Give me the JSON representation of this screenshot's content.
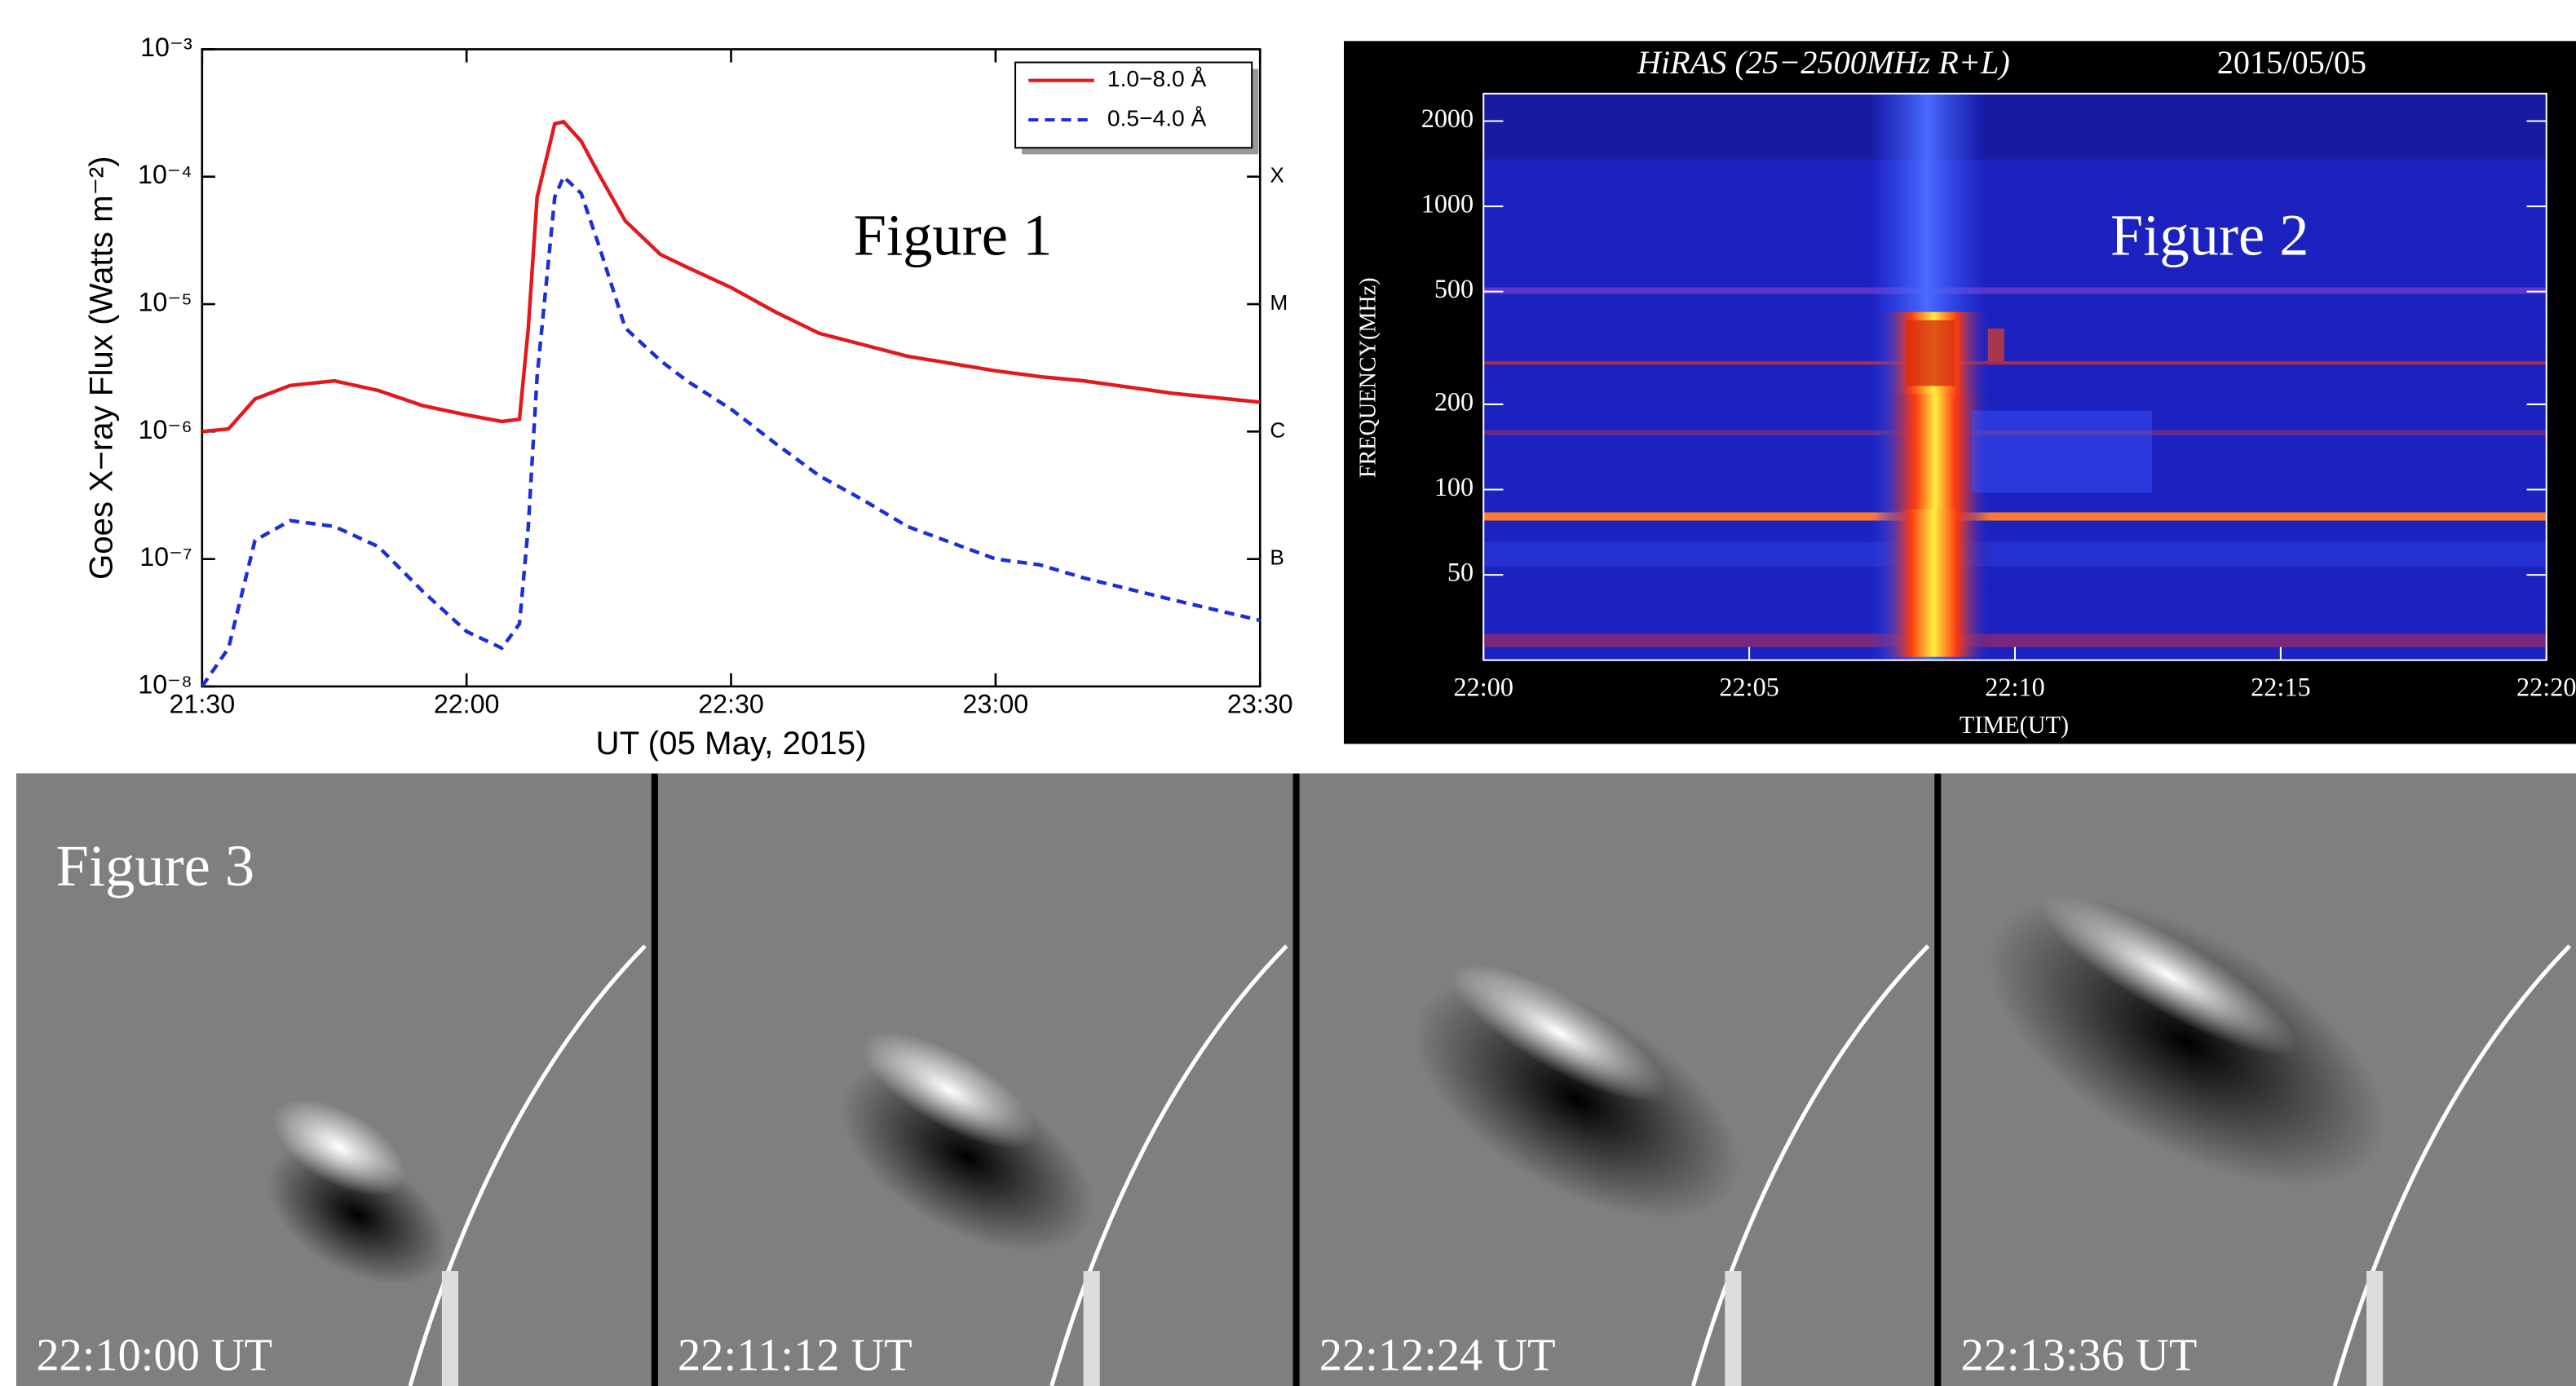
{
  "chart_data": [
    {
      "type": "line",
      "annotation": "Figure 1",
      "xlabel": "UT (05 May, 2015)",
      "ylabel": "Goes X−ray Flux (Watts m⁻²)",
      "log_y": true,
      "legend": "upper right",
      "x": [
        "21:30",
        "21:33",
        "21:36",
        "21:40",
        "21:45",
        "21:50",
        "21:55",
        "22:00",
        "22:04",
        "22:06",
        "22:07",
        "22:08",
        "22:10",
        "22:11",
        "22:13",
        "22:15",
        "22:18",
        "22:22",
        "22:25",
        "22:30",
        "22:35",
        "22:40",
        "22:45",
        "22:50",
        "23:00",
        "23:05",
        "23:10",
        "23:20",
        "23:30"
      ],
      "xlim": [
        "21:30",
        "23:30"
      ],
      "xticks": [
        "21:30",
        "22:00",
        "22:30",
        "23:00",
        "23:30"
      ],
      "ylim": [
        1e-08,
        0.001
      ],
      "yticks": [
        {
          "value": 1e-08,
          "label": "10⁻⁸"
        },
        {
          "value": 1e-07,
          "label": "10⁻⁷"
        },
        {
          "value": 1e-06,
          "label": "10⁻⁶"
        },
        {
          "value": 1e-05,
          "label": "10⁻⁵"
        },
        {
          "value": 0.0001,
          "label": "10⁻⁴"
        },
        {
          "value": 0.001,
          "label": "10⁻³"
        }
      ],
      "y2lim": [
        1e-08,
        0.001
      ],
      "y2ticks": [
        {
          "value": 1e-07,
          "label": "B"
        },
        {
          "value": 1e-06,
          "label": "C"
        },
        {
          "value": 1e-05,
          "label": "M"
        },
        {
          "value": 0.0001,
          "label": "X"
        }
      ],
      "series": [
        {
          "name": "1.0−8.0 Å",
          "color": "#e3171c",
          "style": "solid",
          "values": [
            1e-06,
            1.05e-06,
            1.8e-06,
            2.3e-06,
            2.5e-06,
            2.1e-06,
            1.6e-06,
            1.35e-06,
            1.2e-06,
            1.25e-06,
            6.5e-06,
            6.9e-05,
            0.00026,
            0.00027,
            0.00019,
            0.000105,
            4.5e-05,
            2.45e-05,
            1.95e-05,
            1.35e-05,
            8.7e-06,
            5.9e-06,
            4.8e-06,
            3.9e-06,
            3e-06,
            2.7e-06,
            2.5e-06,
            2e-06,
            1.7e-06
          ]
        },
        {
          "name": "0.5−4.0 Å",
          "color": "#1b2fd6",
          "style": "dashed",
          "values": [
            1e-08,
            2e-08,
            1.4e-07,
            2e-07,
            1.8e-07,
            1.25e-07,
            5.6e-08,
            2.7e-08,
            2e-08,
            3.1e-08,
            1.8e-07,
            2.7e-06,
            6.9e-05,
            0.0001,
            7.4e-05,
            2.9e-05,
            6.5e-06,
            3.6e-06,
            2.5e-06,
            1.5e-06,
            8.1e-07,
            4.5e-07,
            2.9e-07,
            1.8e-07,
            1e-07,
            9e-08,
            7.1e-08,
            4.8e-08,
            3.3e-08
          ]
        }
      ]
    },
    {
      "type": "spectrogram",
      "title": "HiRAS (25−2500MHz R+L)",
      "date": "2015/05/05",
      "annotation": "Figure 2",
      "xlabel": "TIME(UT)",
      "ylabel": "FREQUENCY(MHz)",
      "log_y": true,
      "xlim": [
        "22:00",
        "22:20"
      ],
      "xticks": [
        "22:00",
        "22:05",
        "22:10",
        "22:15",
        "22:20"
      ],
      "ylim": [
        25,
        2500
      ],
      "yticks": [
        50,
        100,
        200,
        500,
        1000,
        2000
      ]
    }
  ],
  "images": {
    "label": "Figure 3",
    "frames": [
      "22:10:00 UT",
      "22:11:12 UT",
      "22:12:24 UT",
      "22:13:36 UT"
    ]
  }
}
